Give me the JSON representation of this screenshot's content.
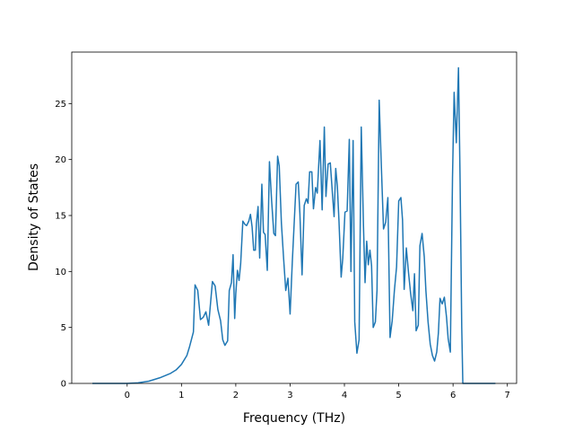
{
  "chart_data": {
    "type": "line",
    "xlabel": "Frequency (THz)",
    "ylabel": "Density of States",
    "xlim": [
      -1.02,
      7.17
    ],
    "ylim": [
      0,
      29.6
    ],
    "xticks": [
      0,
      1,
      2,
      3,
      4,
      5,
      6,
      7
    ],
    "yticks": [
      0,
      5,
      10,
      15,
      20,
      25
    ],
    "grid": false,
    "series": [
      {
        "color": "#1f77b4",
        "x": [
          -0.64,
          -0.3,
          0,
          0.2,
          0.4,
          0.6,
          0.8,
          0.9,
          1.0,
          1.1,
          1.15,
          1.22,
          1.25,
          1.3,
          1.35,
          1.4,
          1.45,
          1.5,
          1.57,
          1.62,
          1.67,
          1.72,
          1.76,
          1.8,
          1.85,
          1.88,
          1.92,
          1.95,
          1.98,
          2.0,
          2.03,
          2.06,
          2.09,
          2.13,
          2.17,
          2.2,
          2.24,
          2.27,
          2.3,
          2.33,
          2.36,
          2.38,
          2.41,
          2.44,
          2.48,
          2.51,
          2.54,
          2.58,
          2.62,
          2.66,
          2.7,
          2.73,
          2.77,
          2.8,
          2.84,
          2.88,
          2.92,
          2.96,
          3.0,
          3.04,
          3.08,
          3.11,
          3.15,
          3.18,
          3.22,
          3.26,
          3.3,
          3.33,
          3.36,
          3.4,
          3.43,
          3.47,
          3.5,
          3.55,
          3.59,
          3.63,
          3.66,
          3.7,
          3.74,
          3.78,
          3.81,
          3.84,
          3.87,
          3.9,
          3.94,
          3.97,
          4.01,
          4.05,
          4.09,
          4.12,
          4.16,
          4.19,
          4.23,
          4.27,
          4.31,
          4.35,
          4.38,
          4.41,
          4.44,
          4.47,
          4.5,
          4.53,
          4.57,
          4.6,
          4.64,
          4.68,
          4.72,
          4.76,
          4.8,
          4.84,
          4.88,
          4.92,
          4.96,
          5.0,
          5.04,
          5.07,
          5.1,
          5.14,
          5.18,
          5.22,
          5.26,
          5.29,
          5.32,
          5.36,
          5.39,
          5.43,
          5.47,
          5.5,
          5.54,
          5.58,
          5.62,
          5.66,
          5.7,
          5.73,
          5.76,
          5.8,
          5.84,
          5.88,
          5.91,
          5.95,
          5.99,
          6.02,
          6.06,
          6.1,
          6.13,
          6.16,
          6.18,
          6.78
        ],
        "values": [
          0,
          0,
          0,
          0.05,
          0.2,
          0.5,
          0.9,
          1.2,
          1.7,
          2.5,
          3.3,
          4.6,
          8.8,
          8.3,
          5.7,
          5.9,
          6.4,
          5.2,
          9.1,
          8.7,
          6.6,
          5.6,
          3.9,
          3.4,
          3.8,
          8.3,
          9.0,
          11.5,
          5.8,
          8.0,
          10.1,
          9.2,
          10.7,
          14.5,
          14.2,
          14.1,
          14.5,
          15.1,
          14.0,
          11.9,
          11.9,
          14.3,
          15.8,
          11.2,
          17.8,
          13.5,
          13.3,
          10.1,
          19.8,
          16.3,
          13.4,
          13.2,
          20.3,
          19.4,
          14.3,
          11.2,
          8.3,
          9.4,
          6.2,
          10.8,
          14.8,
          17.8,
          18.0,
          15.2,
          9.7,
          15.9,
          16.5,
          16.1,
          18.9,
          18.9,
          15.6,
          17.5,
          17.0,
          21.7,
          15.5,
          22.9,
          16.7,
          19.6,
          19.7,
          16.9,
          14.9,
          19.2,
          17.6,
          14.5,
          9.5,
          11.2,
          15.3,
          15.4,
          21.8,
          10.0,
          21.7,
          5.5,
          2.7,
          3.9,
          22.9,
          14.2,
          9.0,
          12.7,
          10.6,
          11.9,
          10.5,
          5.0,
          5.5,
          8.3,
          25.3,
          19.4,
          13.8,
          14.4,
          16.6,
          4.1,
          5.6,
          8.3,
          10.4,
          16.3,
          16.6,
          14.6,
          8.4,
          12.1,
          9.9,
          8.0,
          6.5,
          9.8,
          4.7,
          5.2,
          12.3,
          13.4,
          11.3,
          8.3,
          5.5,
          3.5,
          2.5,
          2.0,
          2.8,
          4.5,
          7.6,
          7.1,
          7.7,
          5.9,
          4.0,
          2.8,
          18.4,
          26.0,
          21.5,
          28.2,
          18.0,
          5.0,
          0,
          0
        ]
      }
    ]
  }
}
